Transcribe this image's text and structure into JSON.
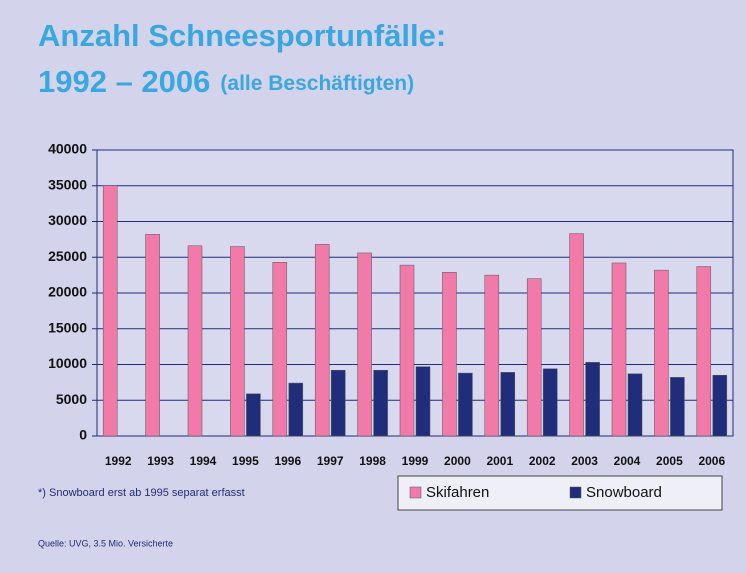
{
  "chart_data": {
    "type": "bar",
    "title": "Anzahl Schneesportunfälle:",
    "title_line2": "1992 – 2006",
    "subtitle": "(alle Beschäftigten)",
    "footnote": "*) Snowboard erst ab 1995 separat erfasst",
    "source": "Quelle: UVG, 3.5 Mio. Versicherte",
    "categories": [
      "1992",
      "1993",
      "1994",
      "1995",
      "1996",
      "1997",
      "1998",
      "1999",
      "2000",
      "2001",
      "2002",
      "2003",
      "2004",
      "2005",
      "2006"
    ],
    "series": [
      {
        "name": "Skifahren",
        "color": "#f27aa8",
        "values": [
          35000,
          28200,
          26600,
          26500,
          24300,
          26800,
          25600,
          23900,
          22900,
          22500,
          22000,
          28300,
          24200,
          23200,
          23700
        ]
      },
      {
        "name": "Snowboard",
        "color": "#1f2d7a",
        "values": [
          null,
          null,
          null,
          5900,
          7400,
          9200,
          9200,
          9700,
          8800,
          8900,
          9400,
          10300,
          8700,
          8200,
          8500
        ]
      }
    ],
    "ylim": [
      0,
      40000
    ],
    "yticks": [
      0,
      5000,
      10000,
      15000,
      20000,
      25000,
      30000,
      35000,
      40000
    ],
    "grid": true
  }
}
